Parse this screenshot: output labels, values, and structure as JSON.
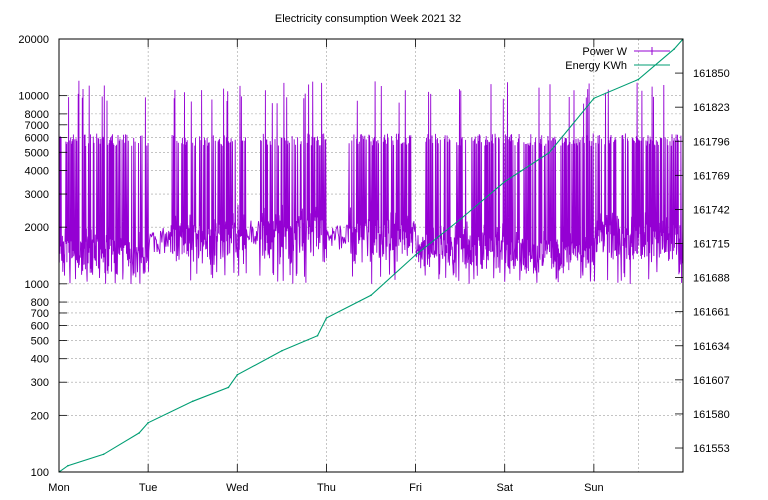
{
  "chart_data": {
    "type": "line",
    "title": "Electricity consumption Week 2021 32",
    "xlabel": "",
    "ylabel": "",
    "x_ticks": [
      "Mon",
      "Tue",
      "Wed",
      "Thu",
      "Fri",
      "Sat",
      "Sun"
    ],
    "x_range_days": [
      0,
      7
    ],
    "y_scale": "log",
    "y_range": [
      100,
      20000
    ],
    "y_ticks": [
      "100",
      "200",
      "300",
      "400",
      "500",
      "600",
      "700",
      "800",
      "1000",
      "2000",
      "3000",
      "4000",
      "5000",
      "6000",
      "7000",
      "8000",
      "10000",
      "20000"
    ],
    "y2_range": [
      161534,
      161877
    ],
    "y2_ticks": [
      "161553",
      "161580",
      "161607",
      "161634",
      "161661",
      "161688",
      "161715",
      "161742",
      "161769",
      "161796",
      "161823",
      "161850"
    ],
    "grid": true,
    "legend_position": "top-right",
    "series": [
      {
        "name": "Power W",
        "axis": "left",
        "color": "#9400d3",
        "baseline_day": [
          1500,
          1800,
          2000,
          1900,
          1600,
          1500,
          1800
        ],
        "pulse_value": 6000,
        "peak_values": [
          9000,
          12000
        ],
        "idle_value": 1400,
        "trough_value": 1050
      },
      {
        "name": "Energy KWh",
        "axis": "right",
        "color": "#009e73",
        "x": [
          0,
          0.1,
          0.5,
          0.9,
          1.0,
          1.5,
          1.9,
          2.0,
          2.5,
          2.9,
          3.0,
          3.5,
          4.0,
          4.5,
          5.0,
          5.5,
          6.0,
          6.5,
          6.9,
          7.0
        ],
        "values": [
          161534,
          161539,
          161548,
          161565,
          161573,
          161590,
          161601,
          161611,
          161630,
          161642,
          161656,
          161674,
          161706,
          161734,
          161764,
          161787,
          161830,
          161845,
          161869,
          161877
        ]
      }
    ]
  }
}
